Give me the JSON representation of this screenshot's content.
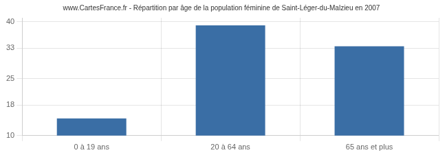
{
  "chart_data": {
    "type": "bar",
    "title": "www.CartesFrance.fr - Répartition par âge de la population féminine de Saint-Léger-du-Malzieu en 2007",
    "categories": [
      "0 à 19 ans",
      "20 à 64 ans",
      "65 ans et plus"
    ],
    "values": [
      14.5,
      39.0,
      33.5
    ],
    "color": "#3a6ea5",
    "ylim": [
      10,
      41
    ],
    "yticks": [
      10,
      18,
      25,
      33,
      40
    ],
    "grid": true
  }
}
